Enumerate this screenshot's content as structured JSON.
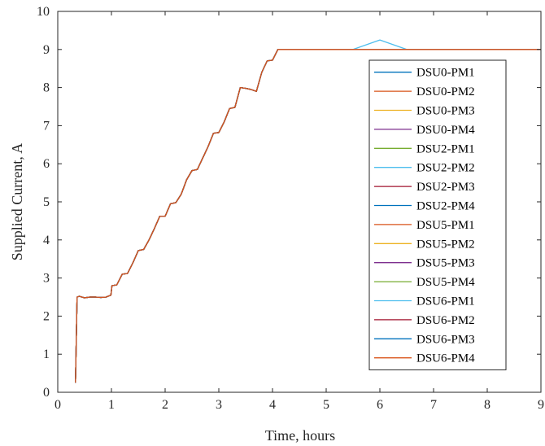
{
  "chart_data": {
    "type": "line",
    "title": "",
    "xlabel": "Time, hours",
    "ylabel": "Supplied Current, A",
    "xlim": [
      0,
      9
    ],
    "ylim": [
      0,
      10
    ],
    "x_ticks": [
      0,
      1,
      2,
      3,
      4,
      5,
      6,
      7,
      8,
      9
    ],
    "y_ticks": [
      0,
      1,
      2,
      3,
      4,
      5,
      6,
      7,
      8,
      9,
      10
    ],
    "grid": false,
    "legend_position": "right",
    "x": [
      0.33,
      0.36,
      0.4,
      0.45,
      0.5,
      0.6,
      0.7,
      0.8,
      0.9,
      0.99,
      1.01,
      1.1,
      1.2,
      1.3,
      1.4,
      1.5,
      1.6,
      1.7,
      1.8,
      1.9,
      2.0,
      2.1,
      2.2,
      2.3,
      2.4,
      2.5,
      2.6,
      2.7,
      2.8,
      2.9,
      3.0,
      3.1,
      3.2,
      3.3,
      3.4,
      3.5,
      3.6,
      3.7,
      3.8,
      3.9,
      4.0,
      4.1,
      4.2,
      4.5,
      5.0,
      5.5,
      6.0,
      6.5,
      7.0,
      7.5,
      8.0,
      8.5,
      9.0
    ],
    "series": [
      {
        "name": "DSU0-PM1",
        "color": "#0072BD",
        "values": [
          0.25,
          2.5,
          2.52,
          2.5,
          2.48,
          2.5,
          2.5,
          2.49,
          2.5,
          2.55,
          2.8,
          2.82,
          3.1,
          3.12,
          3.4,
          3.72,
          3.75,
          4.0,
          4.3,
          4.62,
          4.62,
          4.95,
          4.98,
          5.2,
          5.58,
          5.82,
          5.85,
          6.15,
          6.45,
          6.8,
          6.82,
          7.1,
          7.45,
          7.48,
          8.0,
          7.98,
          7.95,
          7.9,
          8.4,
          8.7,
          8.72,
          9.0,
          9.0,
          9.0,
          9.0,
          9.0,
          9.0,
          9.0,
          9.0,
          9.0,
          9.0,
          9.0,
          9.0
        ]
      },
      {
        "name": "DSU0-PM2",
        "color": "#D95319",
        "values": [
          0.25,
          2.5,
          2.52,
          2.5,
          2.48,
          2.5,
          2.5,
          2.49,
          2.5,
          2.55,
          2.8,
          2.82,
          3.1,
          3.12,
          3.4,
          3.72,
          3.75,
          4.0,
          4.3,
          4.62,
          4.62,
          4.95,
          4.98,
          5.2,
          5.58,
          5.82,
          5.85,
          6.15,
          6.45,
          6.8,
          6.82,
          7.1,
          7.45,
          7.48,
          8.0,
          7.98,
          7.95,
          7.9,
          8.4,
          8.7,
          8.72,
          9.0,
          9.0,
          9.0,
          9.0,
          9.0,
          9.0,
          9.0,
          9.0,
          9.0,
          9.0,
          9.0,
          9.0
        ]
      },
      {
        "name": "DSU0-PM3",
        "color": "#EDB120",
        "values": [
          0.25,
          2.5,
          2.52,
          2.5,
          2.48,
          2.5,
          2.5,
          2.49,
          2.5,
          2.55,
          2.8,
          2.82,
          3.1,
          3.12,
          3.4,
          3.72,
          3.75,
          4.0,
          4.3,
          4.62,
          4.62,
          4.95,
          4.98,
          5.2,
          5.58,
          5.82,
          5.85,
          6.15,
          6.45,
          6.8,
          6.82,
          7.1,
          7.45,
          7.48,
          8.0,
          7.98,
          7.95,
          7.9,
          8.4,
          8.7,
          8.72,
          9.0,
          9.0,
          9.0,
          9.0,
          9.0,
          9.0,
          9.0,
          9.0,
          9.0,
          9.0,
          9.0,
          9.0
        ]
      },
      {
        "name": "DSU0-PM4",
        "color": "#7E2F8E",
        "values": [
          0.25,
          2.5,
          2.52,
          2.5,
          2.48,
          2.5,
          2.5,
          2.49,
          2.5,
          2.55,
          2.8,
          2.82,
          3.1,
          3.12,
          3.4,
          3.72,
          3.75,
          4.0,
          4.3,
          4.62,
          4.62,
          4.95,
          4.98,
          5.2,
          5.58,
          5.82,
          5.85,
          6.15,
          6.45,
          6.8,
          6.82,
          7.1,
          7.45,
          7.48,
          8.0,
          7.98,
          7.95,
          7.9,
          8.4,
          8.7,
          8.72,
          9.0,
          9.0,
          9.0,
          9.0,
          9.0,
          9.0,
          9.0,
          9.0,
          9.0,
          9.0,
          9.0,
          9.0
        ]
      },
      {
        "name": "DSU2-PM1",
        "color": "#77AC30",
        "values": [
          0.25,
          2.5,
          2.52,
          2.5,
          2.48,
          2.5,
          2.5,
          2.49,
          2.5,
          2.55,
          2.8,
          2.82,
          3.1,
          3.12,
          3.4,
          3.72,
          3.75,
          4.0,
          4.3,
          4.62,
          4.62,
          4.95,
          4.98,
          5.2,
          5.58,
          5.82,
          5.85,
          6.15,
          6.45,
          6.8,
          6.82,
          7.1,
          7.45,
          7.48,
          8.0,
          7.98,
          7.95,
          7.9,
          8.4,
          8.7,
          8.72,
          9.0,
          9.0,
          9.0,
          9.0,
          9.0,
          9.0,
          9.0,
          9.0,
          9.0,
          9.0,
          9.0,
          9.0
        ]
      },
      {
        "name": "DSU2-PM2",
        "color": "#4DBEEE",
        "values": [
          0.25,
          2.5,
          2.52,
          2.5,
          2.48,
          2.5,
          2.5,
          2.49,
          2.5,
          2.55,
          2.8,
          2.82,
          3.1,
          3.12,
          3.4,
          3.72,
          3.75,
          4.0,
          4.3,
          4.62,
          4.62,
          4.95,
          4.98,
          5.2,
          5.58,
          5.82,
          5.85,
          6.15,
          6.45,
          6.8,
          6.82,
          7.1,
          7.45,
          7.48,
          8.0,
          7.98,
          7.95,
          7.9,
          8.4,
          8.7,
          8.72,
          9.0,
          9.0,
          9.0,
          9.0,
          9.0,
          9.25,
          9.0,
          9.0,
          9.0,
          9.0,
          9.0,
          9.0
        ]
      },
      {
        "name": "DSU2-PM3",
        "color": "#A2142F",
        "values": [
          0.25,
          2.5,
          2.52,
          2.5,
          2.48,
          2.5,
          2.5,
          2.49,
          2.5,
          2.55,
          2.8,
          2.82,
          3.1,
          3.12,
          3.4,
          3.72,
          3.75,
          4.0,
          4.3,
          4.62,
          4.62,
          4.95,
          4.98,
          5.2,
          5.58,
          5.82,
          5.85,
          6.15,
          6.45,
          6.8,
          6.82,
          7.1,
          7.45,
          7.48,
          8.0,
          7.98,
          7.95,
          7.9,
          8.4,
          8.7,
          8.72,
          9.0,
          9.0,
          9.0,
          9.0,
          9.0,
          9.0,
          9.0,
          9.0,
          9.0,
          9.0,
          9.0,
          9.0
        ]
      },
      {
        "name": "DSU2-PM4",
        "color": "#0072BD",
        "values": [
          0.25,
          2.5,
          2.52,
          2.5,
          2.48,
          2.5,
          2.5,
          2.49,
          2.5,
          2.55,
          2.8,
          2.82,
          3.1,
          3.12,
          3.4,
          3.72,
          3.75,
          4.0,
          4.3,
          4.62,
          4.62,
          4.95,
          4.98,
          5.2,
          5.58,
          5.82,
          5.85,
          6.15,
          6.45,
          6.8,
          6.82,
          7.1,
          7.45,
          7.48,
          8.0,
          7.98,
          7.95,
          7.9,
          8.4,
          8.7,
          8.72,
          9.0,
          9.0,
          9.0,
          9.0,
          9.0,
          9.0,
          9.0,
          9.0,
          9.0,
          9.0,
          9.0,
          9.0
        ]
      },
      {
        "name": "DSU5-PM1",
        "color": "#D95319",
        "values": [
          0.25,
          2.5,
          2.52,
          2.5,
          2.48,
          2.5,
          2.5,
          2.49,
          2.5,
          2.55,
          2.8,
          2.82,
          3.1,
          3.12,
          3.4,
          3.72,
          3.75,
          4.0,
          4.3,
          4.62,
          4.62,
          4.95,
          4.98,
          5.2,
          5.58,
          5.82,
          5.85,
          6.15,
          6.45,
          6.8,
          6.82,
          7.1,
          7.45,
          7.48,
          8.0,
          7.98,
          7.95,
          7.9,
          8.4,
          8.7,
          8.72,
          9.0,
          9.0,
          9.0,
          9.0,
          9.0,
          9.0,
          9.0,
          9.0,
          9.0,
          9.0,
          9.0,
          9.0
        ]
      },
      {
        "name": "DSU5-PM2",
        "color": "#EDB120",
        "values": [
          0.25,
          2.5,
          2.52,
          2.5,
          2.48,
          2.5,
          2.5,
          2.49,
          2.5,
          2.55,
          2.8,
          2.82,
          3.1,
          3.12,
          3.4,
          3.72,
          3.75,
          4.0,
          4.3,
          4.62,
          4.62,
          4.95,
          4.98,
          5.2,
          5.58,
          5.82,
          5.85,
          6.15,
          6.45,
          6.8,
          6.82,
          7.1,
          7.45,
          7.48,
          8.0,
          7.98,
          7.95,
          7.9,
          8.4,
          8.7,
          8.72,
          9.0,
          9.0,
          9.0,
          9.0,
          9.0,
          9.0,
          9.0,
          9.0,
          9.0,
          9.0,
          9.0,
          9.0
        ]
      },
      {
        "name": "DSU5-PM3",
        "color": "#7E2F8E",
        "values": [
          0.25,
          2.5,
          2.52,
          2.5,
          2.48,
          2.5,
          2.5,
          2.49,
          2.5,
          2.55,
          2.8,
          2.82,
          3.1,
          3.12,
          3.4,
          3.72,
          3.75,
          4.0,
          4.3,
          4.62,
          4.62,
          4.95,
          4.98,
          5.2,
          5.58,
          5.82,
          5.85,
          6.15,
          6.45,
          6.8,
          6.82,
          7.1,
          7.45,
          7.48,
          8.0,
          7.98,
          7.95,
          7.9,
          8.4,
          8.7,
          8.72,
          9.0,
          9.0,
          9.0,
          9.0,
          9.0,
          9.0,
          9.0,
          9.0,
          9.0,
          9.0,
          9.0,
          9.0
        ]
      },
      {
        "name": "DSU5-PM4",
        "color": "#77AC30",
        "values": [
          0.25,
          2.5,
          2.52,
          2.5,
          2.48,
          2.5,
          2.5,
          2.49,
          2.5,
          2.55,
          2.8,
          2.82,
          3.1,
          3.12,
          3.4,
          3.72,
          3.75,
          4.0,
          4.3,
          4.62,
          4.62,
          4.95,
          4.98,
          5.2,
          5.58,
          5.82,
          5.85,
          6.15,
          6.45,
          6.8,
          6.82,
          7.1,
          7.45,
          7.48,
          8.0,
          7.98,
          7.95,
          7.9,
          8.4,
          8.7,
          8.72,
          9.0,
          9.0,
          9.0,
          9.0,
          9.0,
          9.0,
          9.0,
          9.0,
          9.0,
          9.0,
          9.0,
          9.0
        ]
      },
      {
        "name": "DSU6-PM1",
        "color": "#4DBEEE",
        "values": [
          0.25,
          2.5,
          2.52,
          2.5,
          2.48,
          2.5,
          2.5,
          2.49,
          2.5,
          2.55,
          2.8,
          2.82,
          3.1,
          3.12,
          3.4,
          3.72,
          3.75,
          4.0,
          4.3,
          4.62,
          4.62,
          4.95,
          4.98,
          5.2,
          5.58,
          5.82,
          5.85,
          6.15,
          6.45,
          6.8,
          6.82,
          7.1,
          7.45,
          7.48,
          8.0,
          7.98,
          7.95,
          7.9,
          8.4,
          8.7,
          8.72,
          9.0,
          9.0,
          9.0,
          9.0,
          9.0,
          9.0,
          9.0,
          9.0,
          9.0,
          9.0,
          9.0,
          9.0
        ]
      },
      {
        "name": "DSU6-PM2",
        "color": "#A2142F",
        "values": [
          0.25,
          2.5,
          2.52,
          2.5,
          2.48,
          2.5,
          2.5,
          2.49,
          2.5,
          2.55,
          2.8,
          2.82,
          3.1,
          3.12,
          3.4,
          3.72,
          3.75,
          4.0,
          4.3,
          4.62,
          4.62,
          4.95,
          4.98,
          5.2,
          5.58,
          5.82,
          5.85,
          6.15,
          6.45,
          6.8,
          6.82,
          7.1,
          7.45,
          7.48,
          8.0,
          7.98,
          7.95,
          7.9,
          8.4,
          8.7,
          8.72,
          9.0,
          9.0,
          9.0,
          9.0,
          9.0,
          9.0,
          9.0,
          9.0,
          9.0,
          9.0,
          9.0,
          9.0
        ]
      },
      {
        "name": "DSU6-PM3",
        "color": "#0072BD",
        "values": [
          0.25,
          2.5,
          2.52,
          2.5,
          2.48,
          2.5,
          2.5,
          2.49,
          2.5,
          2.55,
          2.8,
          2.82,
          3.1,
          3.12,
          3.4,
          3.72,
          3.75,
          4.0,
          4.3,
          4.62,
          4.62,
          4.95,
          4.98,
          5.2,
          5.58,
          5.82,
          5.85,
          6.15,
          6.45,
          6.8,
          6.82,
          7.1,
          7.45,
          7.48,
          8.0,
          7.98,
          7.95,
          7.9,
          8.4,
          8.7,
          8.72,
          9.0,
          9.0,
          9.0,
          9.0,
          9.0,
          9.0,
          9.0,
          9.0,
          9.0,
          9.0,
          9.0,
          9.0
        ]
      },
      {
        "name": "DSU6-PM4",
        "color": "#D95319",
        "values": [
          0.25,
          2.5,
          2.52,
          2.5,
          2.48,
          2.5,
          2.5,
          2.49,
          2.5,
          2.55,
          2.8,
          2.82,
          3.1,
          3.12,
          3.4,
          3.72,
          3.75,
          4.0,
          4.3,
          4.62,
          4.62,
          4.95,
          4.98,
          5.2,
          5.58,
          5.82,
          5.85,
          6.15,
          6.45,
          6.8,
          6.82,
          7.1,
          7.45,
          7.48,
          8.0,
          7.98,
          7.95,
          7.9,
          8.4,
          8.7,
          8.72,
          9.0,
          9.0,
          9.0,
          9.0,
          9.0,
          9.0,
          9.0,
          9.0,
          9.0,
          9.0,
          9.0,
          9.0
        ]
      }
    ]
  }
}
